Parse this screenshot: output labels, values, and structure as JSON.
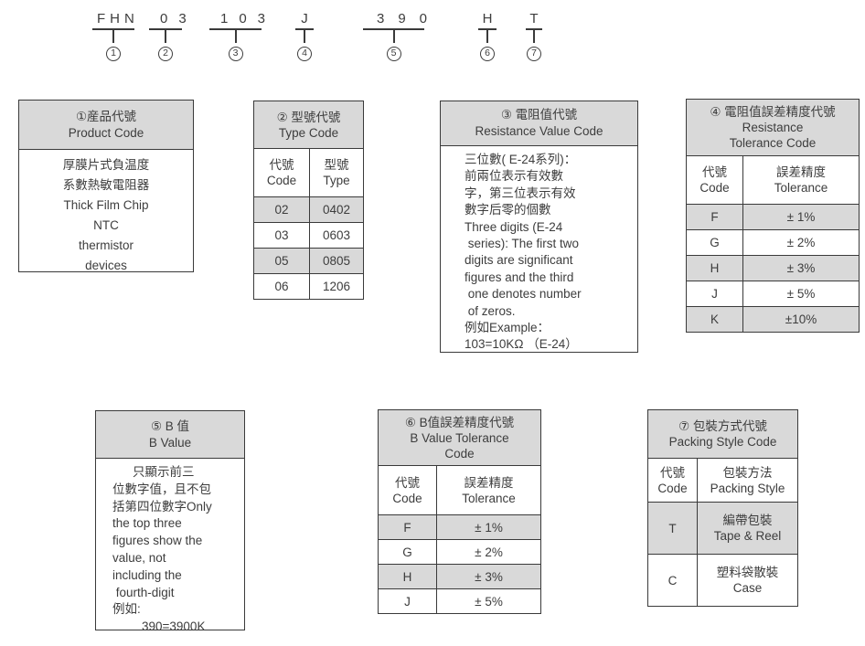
{
  "colors": {
    "header_gray": "#d9d9d9",
    "line": "#3a3a3a",
    "text": "#3d3d3d",
    "background": "#ffffff"
  },
  "part_number": {
    "segments": [
      {
        "code": "FHN",
        "index": "1"
      },
      {
        "code": "03",
        "index": "2"
      },
      {
        "code": "103",
        "index": "3"
      },
      {
        "code": "J",
        "index": "4"
      },
      {
        "code": "390",
        "index": "5"
      },
      {
        "code": "H",
        "index": "6"
      },
      {
        "code": "T",
        "index": "7"
      }
    ]
  },
  "tables": {
    "product_code": {
      "header": [
        "①産品代號",
        "Product Code"
      ],
      "body": [
        "厚膜片式負温度",
        "系數熱敏電阻器",
        "Thick Film Chip",
        "NTC",
        "thermistor",
        "devices"
      ]
    },
    "type_code": {
      "header": [
        "② 型號代號",
        "Type Code"
      ],
      "columns": [
        "代號\nCode",
        "型號\nType"
      ],
      "rows": [
        [
          "02",
          "0402"
        ],
        [
          "03",
          "0603"
        ],
        [
          "05",
          "0805"
        ],
        [
          "06",
          "1206"
        ]
      ]
    },
    "resistance_value": {
      "header": [
        "③ 電阻值代號",
        "Resistance Value Code"
      ],
      "body": [
        "三位數( E-24系列)：",
        "前兩位表示有效數",
        "字，第三位表示有效",
        "數字后零的個數",
        "Three digits (E-24",
        " series): The first two",
        "digits are significant",
        "figures and the third",
        " one denotes number",
        " of zeros.",
        "例如Example：",
        "103=10KΩ （E-24）"
      ]
    },
    "resistance_tolerance": {
      "header": [
        "④ 電阻值誤差精度代號",
        "Resistance",
        "Tolerance Code"
      ],
      "columns": [
        "代號\nCode",
        "誤差精度\nTolerance"
      ],
      "rows": [
        [
          "F",
          "± 1%"
        ],
        [
          "G",
          "± 2%"
        ],
        [
          "H",
          "± 3%"
        ],
        [
          "J",
          "± 5%"
        ],
        [
          "K",
          "±10%"
        ]
      ]
    },
    "b_value": {
      "header": [
        "⑤ B 值",
        "B Value"
      ],
      "body": [
        "只顯示前三",
        "位數字值，且不包",
        "括第四位數字Only",
        "the top three",
        "figures show the",
        "value, not",
        "including the",
        " fourth-digit",
        "例如:",
        "390=3900K"
      ]
    },
    "b_value_tolerance": {
      "header": [
        "⑥ B值誤差精度代號",
        "B Value Tolerance",
        "Code"
      ],
      "columns": [
        "代號\nCode",
        "誤差精度\nTolerance"
      ],
      "rows": [
        [
          "F",
          "± 1%"
        ],
        [
          "G",
          "± 2%"
        ],
        [
          "H",
          "± 3%"
        ],
        [
          "J",
          "± 5%"
        ]
      ]
    },
    "packing_style": {
      "header": [
        "⑦ 包裝方式代號",
        "Packing Style Code"
      ],
      "columns": [
        "代號\nCode",
        "包裝方法\nPacking Style"
      ],
      "rows": [
        [
          "T",
          "編帶包裝\nTape & Reel"
        ],
        [
          "C",
          "塑料袋散裝\nCase"
        ]
      ]
    }
  }
}
